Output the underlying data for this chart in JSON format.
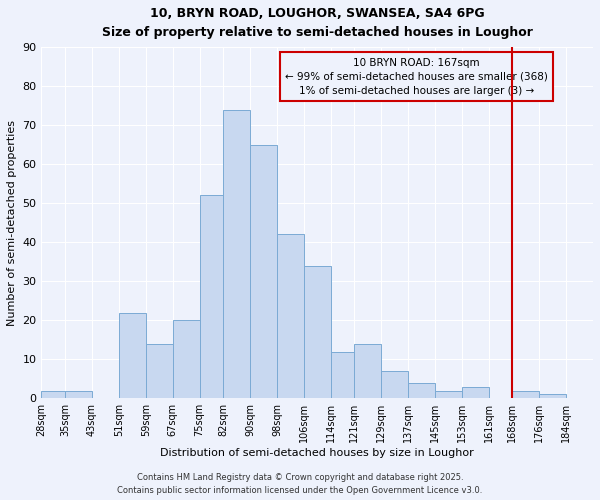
{
  "title": "10, BRYN ROAD, LOUGHOR, SWANSEA, SA4 6PG",
  "subtitle": "Size of property relative to semi-detached houses in Loughor",
  "xlabel": "Distribution of semi-detached houses by size in Loughor",
  "ylabel": "Number of semi-detached properties",
  "bin_labels": [
    "28sqm",
    "35sqm",
    "43sqm",
    "51sqm",
    "59sqm",
    "67sqm",
    "75sqm",
    "82sqm",
    "90sqm",
    "98sqm",
    "106sqm",
    "114sqm",
    "121sqm",
    "129sqm",
    "137sqm",
    "145sqm",
    "153sqm",
    "161sqm",
    "168sqm",
    "176sqm",
    "184sqm"
  ],
  "bin_left_edges": [
    28,
    35,
    43,
    51,
    59,
    67,
    75,
    82,
    90,
    98,
    106,
    114,
    121,
    129,
    137,
    145,
    153,
    161,
    168,
    176,
    184
  ],
  "bin_widths": [
    7,
    8,
    8,
    8,
    8,
    8,
    7,
    8,
    8,
    8,
    8,
    7,
    8,
    8,
    8,
    8,
    8,
    7,
    8,
    8,
    8
  ],
  "bar_heights": [
    2,
    2,
    0,
    22,
    14,
    20,
    52,
    74,
    65,
    42,
    34,
    12,
    14,
    7,
    4,
    2,
    3,
    0,
    2,
    1,
    0
  ],
  "bar_color": "#c8d8f0",
  "bar_edge_color": "#7baad4",
  "marker_x": 168,
  "marker_color": "#cc0000",
  "annotation_title": "10 BRYN ROAD: 167sqm",
  "annotation_line1": "← 99% of semi-detached houses are smaller (368)",
  "annotation_line2": "1% of semi-detached houses are larger (3) →",
  "xlim": [
    28,
    192
  ],
  "ylim": [
    0,
    90
  ],
  "yticks": [
    0,
    10,
    20,
    30,
    40,
    50,
    60,
    70,
    80,
    90
  ],
  "background_color": "#eef2fc",
  "grid_color": "#ffffff",
  "footer_line1": "Contains HM Land Registry data © Crown copyright and database right 2025.",
  "footer_line2": "Contains public sector information licensed under the Open Government Licence v3.0."
}
